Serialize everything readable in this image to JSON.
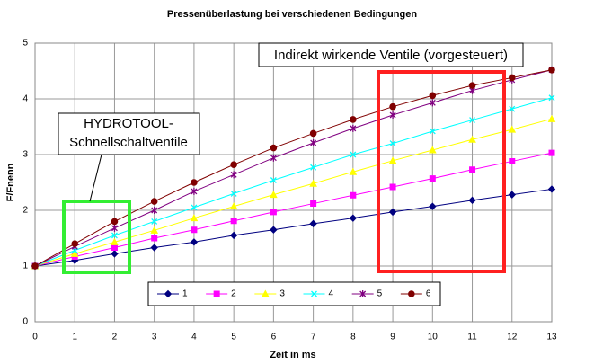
{
  "chart_data": {
    "type": "line",
    "title": "Pressenüberlastung bei verschiedenen Bedingungen",
    "x_label": "Zeit in ms",
    "y_label": "F/Fnenn",
    "x": [
      0,
      1,
      2,
      3,
      4,
      5,
      6,
      7,
      8,
      9,
      10,
      11,
      12,
      13
    ],
    "xlim": [
      0,
      13
    ],
    "xticks": [
      0,
      1,
      2,
      3,
      4,
      5,
      6,
      7,
      8,
      9,
      10,
      11,
      12,
      13
    ],
    "ylim": [
      0,
      5
    ],
    "yticks": [
      0,
      1,
      2,
      3,
      4,
      5
    ],
    "grid": true,
    "legend": "lower center",
    "series": [
      {
        "name": "1",
        "color": "#000080",
        "marker": "diamond",
        "values": [
          1,
          1.1,
          1.22,
          1.33,
          1.43,
          1.55,
          1.65,
          1.76,
          1.86,
          1.97,
          2.07,
          2.18,
          2.28,
          2.38
        ]
      },
      {
        "name": "2",
        "color": "#ff00ff",
        "marker": "square",
        "values": [
          1,
          1.17,
          1.33,
          1.5,
          1.65,
          1.81,
          1.97,
          2.12,
          2.27,
          2.42,
          2.57,
          2.73,
          2.88,
          3.03
        ]
      },
      {
        "name": "3",
        "color": "#ffff00",
        "marker": "triangle",
        "values": [
          1,
          1.22,
          1.43,
          1.64,
          1.86,
          2.07,
          2.28,
          2.48,
          2.69,
          2.89,
          3.08,
          3.27,
          3.45,
          3.64
        ]
      },
      {
        "name": "4",
        "color": "#00ffff",
        "marker": "x",
        "values": [
          1,
          1.28,
          1.55,
          1.8,
          2.05,
          2.3,
          2.54,
          2.77,
          3.0,
          3.2,
          3.42,
          3.62,
          3.82,
          4.02
        ]
      },
      {
        "name": "5",
        "color": "#800080",
        "marker": "star",
        "values": [
          1,
          1.35,
          1.68,
          2.0,
          2.34,
          2.64,
          2.94,
          3.21,
          3.47,
          3.71,
          3.93,
          4.15,
          4.34,
          4.52
        ]
      },
      {
        "name": "6",
        "color": "#800000",
        "marker": "circle",
        "values": [
          1,
          1.4,
          1.8,
          2.16,
          2.5,
          2.82,
          3.12,
          3.38,
          3.63,
          3.86,
          4.06,
          4.24,
          4.38,
          4.52
        ]
      }
    ],
    "annotations": [
      {
        "text": "Indirekt wirkende Ventile (vorgesteuert)"
      },
      {
        "lines": [
          "HYDROTOOL-",
          "Schnellschaltventile"
        ]
      }
    ]
  }
}
